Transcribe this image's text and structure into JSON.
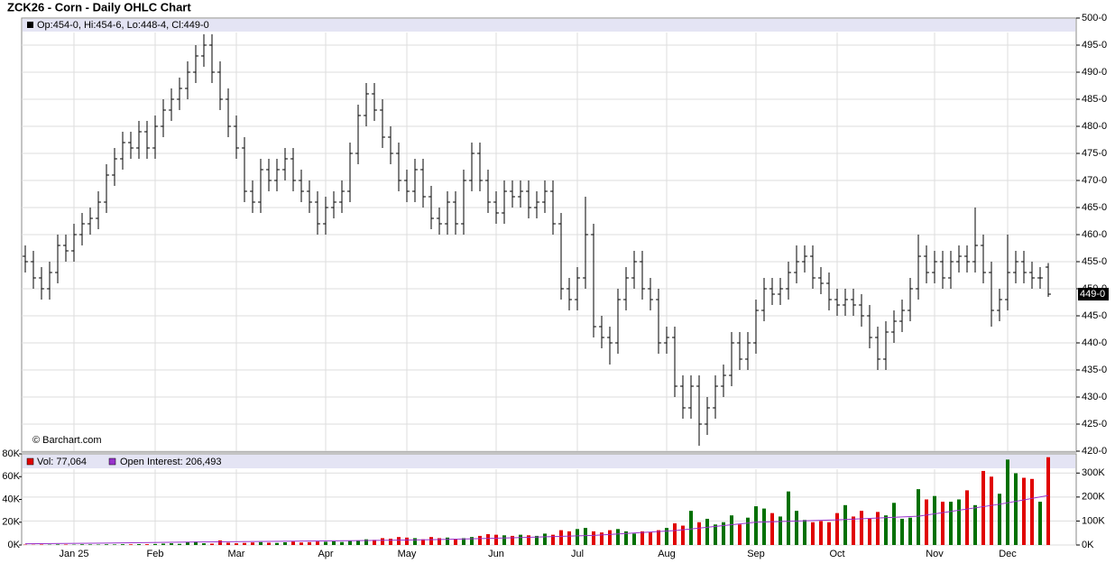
{
  "chart_data": {
    "type": "ohlc",
    "title": "ZCK26 - Corn - Daily OHLC Chart",
    "legend": "Op:454-0, Hi:454-6, Lo:448-4, Cl:449-0",
    "watermark": "© Barchart.com",
    "last_label": "449-0",
    "color": "#000000",
    "grid": true,
    "categories": [
      null,
      null,
      null,
      null,
      null,
      null,
      "Jan 25",
      null,
      null,
      null,
      null,
      null,
      null,
      null,
      null,
      null,
      "Feb",
      null,
      null,
      null,
      null,
      null,
      null,
      null,
      null,
      null,
      "Mar",
      null,
      null,
      null,
      null,
      null,
      null,
      null,
      null,
      null,
      null,
      "Apr",
      null,
      null,
      null,
      null,
      null,
      null,
      null,
      null,
      null,
      "May",
      null,
      null,
      null,
      null,
      null,
      null,
      null,
      null,
      null,
      null,
      "Jun",
      null,
      null,
      null,
      null,
      null,
      null,
      null,
      null,
      null,
      "Jul",
      null,
      null,
      null,
      null,
      null,
      null,
      null,
      null,
      null,
      null,
      "Aug",
      null,
      null,
      null,
      null,
      null,
      null,
      null,
      null,
      null,
      null,
      "Sep",
      null,
      null,
      null,
      null,
      null,
      null,
      null,
      null,
      null,
      "Oct",
      null,
      null,
      null,
      null,
      null,
      null,
      null,
      null,
      null,
      null,
      null,
      "Nov",
      null,
      null,
      null,
      null,
      null,
      null,
      null,
      null,
      "Dec",
      null,
      null,
      null,
      null,
      null
    ],
    "open": [
      456,
      455,
      452,
      450,
      453,
      458,
      457,
      460,
      462,
      463,
      466,
      471,
      474,
      477,
      476,
      479,
      476,
      480,
      483,
      485,
      487,
      490,
      493,
      495,
      490,
      485,
      480,
      476,
      468,
      466,
      472,
      470,
      472,
      474,
      470,
      468,
      466,
      462,
      465,
      466,
      468,
      475,
      482,
      486,
      483,
      478,
      475,
      470,
      468,
      472,
      467,
      463,
      462,
      466,
      462,
      470,
      475,
      470,
      466,
      464,
      468,
      467,
      468,
      465,
      466,
      468,
      462,
      450,
      448,
      452,
      460,
      443,
      441,
      440,
      448,
      452,
      455,
      450,
      448,
      440,
      441,
      432,
      428,
      432,
      425,
      428,
      432,
      434,
      440,
      437,
      440,
      446,
      450,
      449,
      450,
      453,
      455,
      456,
      452,
      451,
      448,
      447,
      448,
      447,
      445,
      441,
      437,
      442,
      444,
      446,
      450,
      456,
      453,
      455,
      452,
      455,
      456,
      455,
      458,
      453,
      446,
      448,
      453,
      455,
      453,
      452,
      454
    ],
    "high": [
      458,
      457,
      454,
      455,
      460,
      460,
      462,
      464,
      465,
      468,
      473,
      476,
      479,
      479,
      481,
      481,
      482,
      485,
      487,
      489,
      492,
      495,
      497,
      497,
      492,
      487,
      482,
      478,
      470,
      474,
      474,
      474,
      476,
      476,
      472,
      470,
      468,
      467,
      468,
      470,
      477,
      484,
      488,
      488,
      485,
      480,
      477,
      472,
      474,
      474,
      469,
      465,
      468,
      468,
      472,
      477,
      477,
      472,
      468,
      470,
      470,
      470,
      470,
      468,
      470,
      470,
      464,
      452,
      454,
      467,
      462,
      445,
      443,
      450,
      454,
      457,
      457,
      452,
      450,
      443,
      443,
      434,
      434,
      434,
      430,
      434,
      436,
      442,
      442,
      442,
      448,
      452,
      452,
      452,
      455,
      458,
      458,
      458,
      454,
      453,
      450,
      450,
      450,
      449,
      447,
      443,
      444,
      446,
      448,
      452,
      460,
      458,
      457,
      457,
      457,
      458,
      458,
      465,
      460,
      455,
      450,
      460,
      457,
      457,
      455,
      454,
      454.75
    ],
    "low": [
      453,
      450,
      448,
      448,
      451,
      455,
      455,
      458,
      460,
      461,
      464,
      469,
      472,
      474,
      474,
      474,
      474,
      478,
      481,
      483,
      485,
      488,
      491,
      488,
      483,
      478,
      474,
      466,
      464,
      464,
      468,
      468,
      470,
      468,
      466,
      464,
      460,
      460,
      463,
      464,
      466,
      473,
      480,
      481,
      476,
      473,
      468,
      466,
      466,
      465,
      461,
      460,
      460,
      460,
      460,
      468,
      468,
      464,
      462,
      462,
      465,
      465,
      463,
      463,
      464,
      460,
      448,
      446,
      446,
      450,
      441,
      439,
      436,
      438,
      446,
      450,
      448,
      446,
      438,
      438,
      430,
      426,
      426,
      421,
      423,
      426,
      430,
      432,
      435,
      435,
      438,
      444,
      447,
      447,
      448,
      451,
      453,
      450,
      449,
      446,
      445,
      445,
      445,
      443,
      439,
      435,
      435,
      440,
      442,
      444,
      448,
      451,
      451,
      450,
      450,
      453,
      453,
      453,
      451,
      443,
      444,
      446,
      451,
      451,
      450,
      450,
      448.5
    ],
    "close": [
      455,
      452,
      450,
      453,
      458,
      457,
      460,
      462,
      463,
      466,
      471,
      474,
      477,
      476,
      479,
      476,
      480,
      483,
      485,
      487,
      490,
      493,
      495,
      490,
      485,
      480,
      476,
      468,
      466,
      472,
      470,
      472,
      474,
      470,
      468,
      466,
      462,
      465,
      466,
      468,
      475,
      482,
      486,
      483,
      478,
      475,
      470,
      468,
      472,
      467,
      463,
      462,
      466,
      462,
      470,
      475,
      470,
      466,
      464,
      468,
      467,
      468,
      465,
      466,
      468,
      462,
      450,
      448,
      452,
      460,
      443,
      441,
      440,
      448,
      452,
      455,
      450,
      448,
      440,
      441,
      432,
      428,
      432,
      425,
      428,
      432,
      434,
      440,
      437,
      440,
      446,
      450,
      449,
      450,
      453,
      455,
      456,
      452,
      451,
      448,
      447,
      448,
      447,
      445,
      441,
      437,
      442,
      444,
      446,
      450,
      456,
      453,
      455,
      452,
      455,
      456,
      455,
      458,
      453,
      446,
      448,
      453,
      455,
      453,
      452,
      452,
      449
    ],
    "ylim": [
      420,
      500
    ],
    "yticks": [
      {
        "value": 420,
        "label": "420-0"
      },
      {
        "value": 425,
        "label": "425-0"
      },
      {
        "value": 430,
        "label": "430-0"
      },
      {
        "value": 435,
        "label": "435-0"
      },
      {
        "value": 440,
        "label": "440-0"
      },
      {
        "value": 445,
        "label": "445-0"
      },
      {
        "value": 450,
        "label": "450-0"
      },
      {
        "value": 455,
        "label": "455-0"
      },
      {
        "value": 460,
        "label": "460-0"
      },
      {
        "value": 465,
        "label": "465-0"
      },
      {
        "value": 470,
        "label": "470-0"
      },
      {
        "value": 475,
        "label": "475-0"
      },
      {
        "value": 480,
        "label": "480-0"
      },
      {
        "value": 485,
        "label": "485-0"
      },
      {
        "value": 490,
        "label": "490-0"
      },
      {
        "value": 495,
        "label": "495-0"
      },
      {
        "value": 500,
        "label": "500-0"
      }
    ],
    "volume": {
      "legend": "Vol: 77,064",
      "legend_color": "#e00000",
      "up_color": "#007000",
      "down_color": "#e00000",
      "values": [
        300,
        200,
        400,
        300,
        500,
        400,
        300,
        600,
        500,
        400,
        600,
        500,
        700,
        600,
        800,
        700,
        900,
        1200,
        1500,
        1000,
        2500,
        3000,
        1500,
        1200,
        4000,
        2000,
        1500,
        1800,
        2200,
        2500,
        2000,
        1800,
        2400,
        3000,
        2200,
        2500,
        3000,
        2800,
        3200,
        2600,
        3500,
        4000,
        5000,
        4500,
        6000,
        5500,
        7000,
        6500,
        6000,
        5000,
        7000,
        6000,
        6500,
        5500,
        6000,
        7000,
        8000,
        9500,
        9000,
        8500,
        8000,
        9000,
        8500,
        8000,
        10000,
        9000,
        13000,
        12000,
        14000,
        15000,
        12000,
        11000,
        13000,
        14000,
        12000,
        10000,
        12000,
        11000,
        13000,
        15000,
        19000,
        17000,
        30000,
        20000,
        23000,
        18000,
        20000,
        26000,
        18000,
        24000,
        34000,
        32000,
        28000,
        25000,
        47000,
        30000,
        22000,
        20000,
        21000,
        20000,
        28000,
        35000,
        25000,
        30000,
        23000,
        29000,
        26000,
        37000,
        23000,
        24000,
        49000,
        40000,
        43000,
        38000,
        38000,
        40000,
        48000,
        35000,
        65000,
        60000,
        45000,
        75000,
        63000,
        59000,
        58000,
        38000,
        77064
      ],
      "ylim": [
        0,
        80000
      ],
      "yticks": [
        {
          "value": 0,
          "label": "0K"
        },
        {
          "value": 20000,
          "label": "20K"
        },
        {
          "value": 40000,
          "label": "40K"
        },
        {
          "value": 60000,
          "label": "60K"
        },
        {
          "value": 80000,
          "label": "80K"
        }
      ],
      "y2lim": [
        0,
        380000
      ],
      "y2ticks": [
        {
          "value": 0,
          "label": "0K"
        },
        {
          "value": 100000,
          "label": "100K"
        },
        {
          "value": 200000,
          "label": "200K"
        },
        {
          "value": 300000,
          "label": "300K"
        }
      ],
      "oi": {
        "name": "Open Interest: 206,493",
        "color": "#9933cc",
        "axis": "y2",
        "x": [
          0,
          10,
          20,
          30,
          40,
          50,
          60,
          70,
          80,
          90,
          100,
          110,
          120,
          126
        ],
        "values": [
          5000,
          8000,
          12000,
          15000,
          18000,
          22000,
          30000,
          40000,
          60000,
          95000,
          105000,
          120000,
          170000,
          206493
        ]
      }
    }
  }
}
